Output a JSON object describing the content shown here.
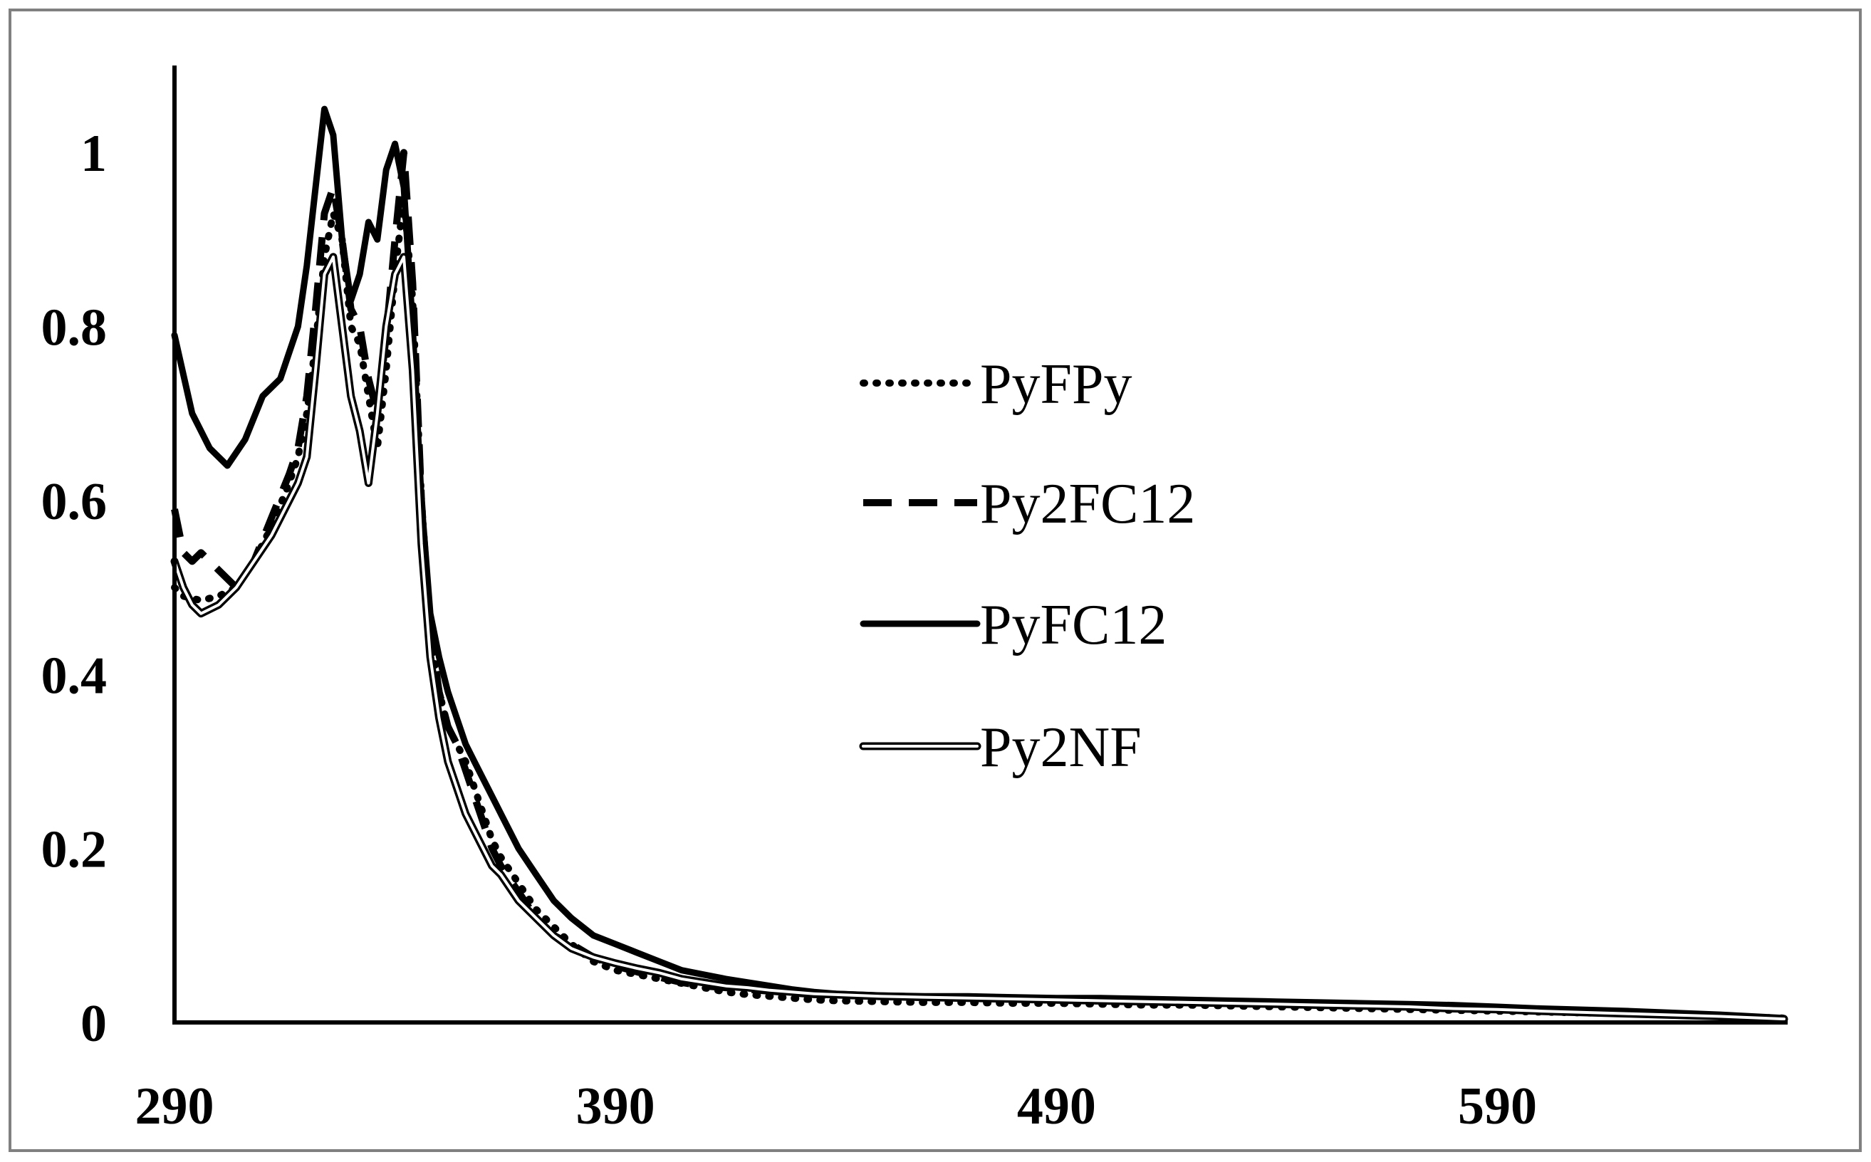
{
  "chart_data": {
    "type": "line",
    "title": "",
    "xlabel": "",
    "ylabel": "",
    "xlim": [
      290,
      655
    ],
    "ylim": [
      0,
      1.1
    ],
    "x_ticks": [
      290,
      390,
      490,
      590
    ],
    "x_tick_labels": [
      "290",
      "390",
      "490",
      "590"
    ],
    "y_ticks": [
      0,
      0.2,
      0.4,
      0.6,
      0.8,
      1
    ],
    "y_tick_labels": [
      "0",
      "0.2",
      "0.4",
      "0.6",
      "0.8",
      "1"
    ],
    "grid": false,
    "legend_position": "center-right",
    "series": [
      {
        "name": "PyFPy",
        "style": "dotted",
        "x": [
          290,
          292,
          296,
          300,
          304,
          308,
          312,
          316,
          318,
          320,
          322,
          324,
          326,
          328,
          330,
          332,
          334,
          336,
          338,
          340,
          342,
          344,
          346,
          348,
          350,
          352,
          354,
          356,
          358,
          360,
          362,
          364,
          368,
          372,
          376,
          380,
          385,
          390,
          395,
          400,
          405,
          410,
          415,
          420,
          425,
          430,
          435,
          440,
          450,
          460,
          470,
          480,
          490,
          500,
          510,
          520,
          530,
          540,
          550,
          560,
          570,
          580,
          590,
          600,
          620,
          640,
          655
        ],
        "y": [
          0.5,
          0.49,
          0.485,
          0.49,
          0.5,
          0.53,
          0.57,
          0.62,
          0.65,
          0.7,
          0.78,
          0.88,
          0.93,
          0.9,
          0.8,
          0.78,
          0.72,
          0.66,
          0.75,
          0.86,
          0.95,
          0.83,
          0.6,
          0.45,
          0.38,
          0.34,
          0.32,
          0.3,
          0.27,
          0.24,
          0.21,
          0.19,
          0.16,
          0.13,
          0.11,
          0.09,
          0.07,
          0.06,
          0.055,
          0.05,
          0.045,
          0.04,
          0.035,
          0.032,
          0.03,
          0.028,
          0.026,
          0.025,
          0.024,
          0.023,
          0.023,
          0.022,
          0.022,
          0.021,
          0.02,
          0.02,
          0.019,
          0.018,
          0.017,
          0.016,
          0.015,
          0.014,
          0.013,
          0.012,
          0.01,
          0.007,
          0.005
        ]
      },
      {
        "name": "Py2FC12",
        "style": "dashed",
        "x": [
          290,
          292,
          294,
          296,
          300,
          304,
          308,
          312,
          316,
          318,
          320,
          322,
          324,
          326,
          328,
          330,
          332,
          334,
          336,
          338,
          340,
          342,
          344,
          346,
          348,
          350,
          352,
          354,
          356,
          358,
          360,
          362,
          364,
          368,
          372,
          376,
          380,
          385,
          390,
          395,
          400,
          405,
          410,
          415,
          420,
          425,
          430,
          435,
          440,
          450,
          460,
          470,
          480,
          490,
          500,
          510,
          520,
          530,
          540,
          550,
          560,
          570,
          580,
          590,
          600,
          620,
          640,
          655
        ],
        "y": [
          0.59,
          0.54,
          0.53,
          0.54,
          0.52,
          0.5,
          0.53,
          0.58,
          0.63,
          0.66,
          0.72,
          0.82,
          0.93,
          0.96,
          0.9,
          0.82,
          0.8,
          0.74,
          0.7,
          0.79,
          0.9,
          1.0,
          0.85,
          0.6,
          0.45,
          0.38,
          0.34,
          0.32,
          0.29,
          0.26,
          0.23,
          0.2,
          0.18,
          0.15,
          0.12,
          0.1,
          0.09,
          0.075,
          0.065,
          0.058,
          0.052,
          0.046,
          0.042,
          0.04,
          0.038,
          0.036,
          0.034,
          0.032,
          0.031,
          0.03,
          0.029,
          0.028,
          0.028,
          0.027,
          0.026,
          0.026,
          0.025,
          0.024,
          0.023,
          0.022,
          0.021,
          0.02,
          0.018,
          0.017,
          0.015,
          0.012,
          0.008,
          0.004
        ]
      },
      {
        "name": "PyFC12",
        "style": "solid",
        "x": [
          290,
          294,
          298,
          302,
          306,
          310,
          314,
          318,
          320,
          322,
          324,
          326,
          328,
          330,
          332,
          334,
          336,
          338,
          340,
          342,
          344,
          346,
          348,
          350,
          352,
          354,
          356,
          358,
          360,
          362,
          364,
          368,
          372,
          376,
          380,
          385,
          390,
          395,
          400,
          405,
          410,
          415,
          420,
          425,
          430,
          435,
          440,
          450,
          460,
          470,
          480,
          490,
          500,
          510,
          520,
          530,
          540,
          550,
          560,
          570,
          580,
          590,
          600,
          620,
          640,
          655
        ],
        "y": [
          0.79,
          0.7,
          0.66,
          0.64,
          0.67,
          0.72,
          0.74,
          0.8,
          0.87,
          0.96,
          1.05,
          1.02,
          0.9,
          0.83,
          0.86,
          0.92,
          0.9,
          0.98,
          1.01,
          0.96,
          0.8,
          0.6,
          0.47,
          0.42,
          0.38,
          0.35,
          0.32,
          0.3,
          0.28,
          0.26,
          0.24,
          0.2,
          0.17,
          0.14,
          0.12,
          0.1,
          0.09,
          0.08,
          0.07,
          0.06,
          0.055,
          0.05,
          0.046,
          0.042,
          0.038,
          0.035,
          0.033,
          0.031,
          0.03,
          0.03,
          0.029,
          0.028,
          0.028,
          0.027,
          0.026,
          0.025,
          0.024,
          0.023,
          0.022,
          0.021,
          0.02,
          0.018,
          0.016,
          0.013,
          0.009,
          0.005
        ]
      },
      {
        "name": "Py2NF",
        "style": "double",
        "x": [
          290,
          292,
          294,
          296,
          300,
          304,
          308,
          312,
          316,
          318,
          320,
          322,
          324,
          326,
          328,
          330,
          332,
          334,
          336,
          338,
          340,
          342,
          344,
          346,
          348,
          350,
          352,
          354,
          356,
          358,
          360,
          362,
          364,
          368,
          372,
          376,
          380,
          385,
          390,
          395,
          400,
          405,
          410,
          415,
          420,
          425,
          430,
          435,
          440,
          450,
          460,
          470,
          480,
          490,
          500,
          510,
          520,
          530,
          540,
          550,
          560,
          570,
          580,
          590,
          600,
          620,
          640,
          655
        ],
        "y": [
          0.53,
          0.5,
          0.48,
          0.47,
          0.48,
          0.5,
          0.53,
          0.56,
          0.6,
          0.62,
          0.65,
          0.75,
          0.86,
          0.88,
          0.8,
          0.72,
          0.68,
          0.62,
          0.7,
          0.8,
          0.86,
          0.88,
          0.75,
          0.55,
          0.42,
          0.35,
          0.3,
          0.27,
          0.24,
          0.22,
          0.2,
          0.18,
          0.17,
          0.14,
          0.12,
          0.1,
          0.085,
          0.075,
          0.068,
          0.062,
          0.057,
          0.05,
          0.046,
          0.042,
          0.04,
          0.037,
          0.035,
          0.033,
          0.032,
          0.03,
          0.029,
          0.028,
          0.027,
          0.026,
          0.025,
          0.024,
          0.023,
          0.022,
          0.021,
          0.02,
          0.019,
          0.018,
          0.016,
          0.015,
          0.013,
          0.01,
          0.007,
          0.004
        ]
      }
    ]
  }
}
